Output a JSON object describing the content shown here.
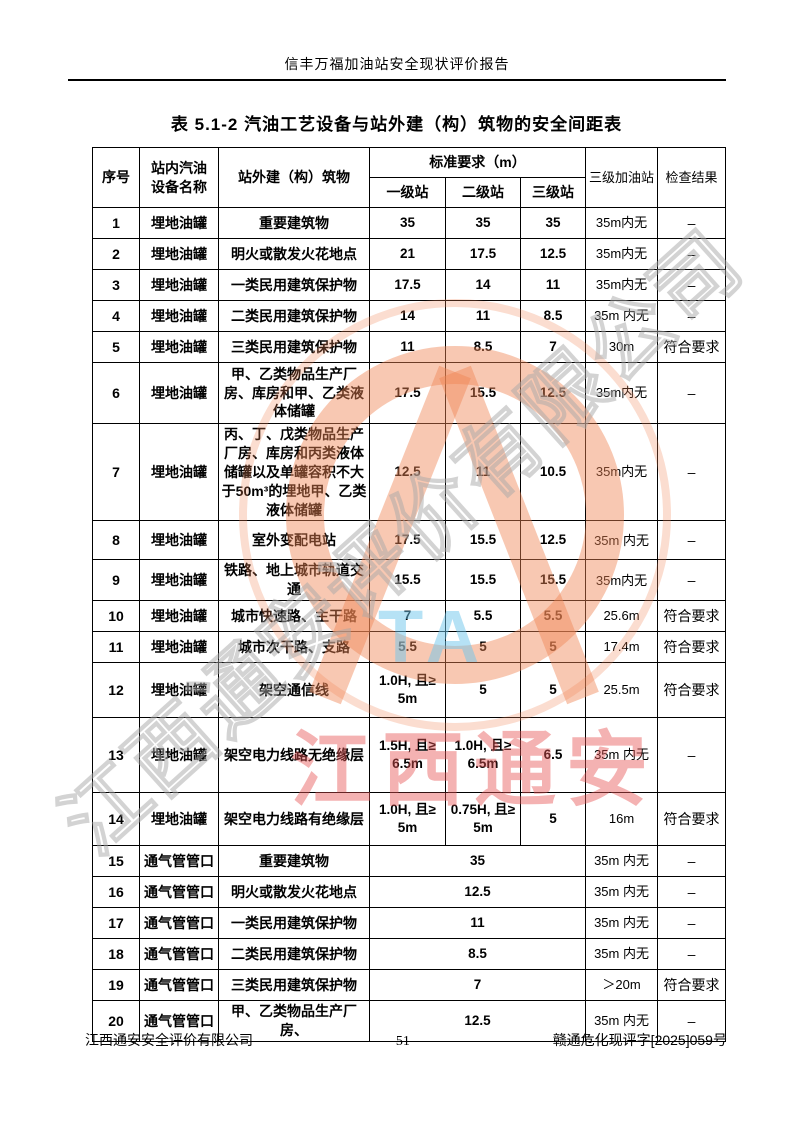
{
  "page": {
    "header": "信丰万福加油站安全现状评价报告",
    "title": "表 5.1-2  汽油工艺设备与站外建（构）筑物的安全间距表",
    "footer_left": "江西通安安全评价有限公司",
    "footer_page": "51",
    "footer_right": "赣通危化现评字[2025]059号"
  },
  "watermark": {
    "red_text": "江西通安",
    "diagonal_text": "江西通安评价有限公司",
    "logo_letters": "TA",
    "ring_color": "#f08455",
    "red_color": "#e65555",
    "gray_color": "#a8a8a8",
    "blue_color": "#6ec6ec"
  },
  "table": {
    "headers": {
      "col_index": "序号",
      "col_equipment": "站内汽油\n设备名称",
      "col_structure": "站外建（构）筑物",
      "col_standard": "标准要求（m）",
      "col_grade1": "一级站",
      "col_grade2": "二级站",
      "col_grade3": "三级站",
      "col_station3": "三级加油站",
      "col_result": "检查结果"
    },
    "rows": [
      {
        "no": "1",
        "equipment": "埋地油罐",
        "structure": "重要建筑物",
        "v1": "35",
        "v2": "35",
        "v3": "35",
        "station3": "35m内无",
        "result": "–"
      },
      {
        "no": "2",
        "equipment": "埋地油罐",
        "structure": "明火或散发火花地点",
        "v1": "21",
        "v2": "17.5",
        "v3": "12.5",
        "station3": "35m内无",
        "result": "–"
      },
      {
        "no": "3",
        "equipment": "埋地油罐",
        "structure": "一类民用建筑保护物",
        "v1": "17.5",
        "v2": "14",
        "v3": "11",
        "station3": "35m内无",
        "result": "–"
      },
      {
        "no": "4",
        "equipment": "埋地油罐",
        "structure": "二类民用建筑保护物",
        "v1": "14",
        "v2": "11",
        "v3": "8.5",
        "station3": "35m 内无",
        "result": "–"
      },
      {
        "no": "5",
        "equipment": "埋地油罐",
        "structure": "三类民用建筑保护物",
        "v1": "11",
        "v2": "8.5",
        "v3": "7",
        "station3": "30m",
        "result": "符合要求"
      },
      {
        "no": "6",
        "equipment": "埋地油罐",
        "structure": "甲、乙类物品生产厂房、库房和甲、乙类液体储罐",
        "v1": "17.5",
        "v2": "15.5",
        "v3": "12.5",
        "station3": "35m内无",
        "result": "–"
      },
      {
        "no": "7",
        "equipment": "埋地油罐",
        "structure": "丙、丁、戊类物品生产厂房、库房和丙类液体储罐以及单罐容积不大于50m³的埋地甲、乙类液体储罐",
        "v1": "12.5",
        "v2": "11",
        "v3": "10.5",
        "station3": "35m内无",
        "result": "–"
      },
      {
        "no": "8",
        "equipment": "埋地油罐",
        "structure": "室外变配电站",
        "v1": "17.5",
        "v2": "15.5",
        "v3": "12.5",
        "station3": "35m 内无",
        "result": "–"
      },
      {
        "no": "9",
        "equipment": "埋地油罐",
        "structure": "铁路、地上城市轨道交通",
        "v1": "15.5",
        "v2": "15.5",
        "v3": "15.5",
        "station3": "35m内无",
        "result": "–"
      },
      {
        "no": "10",
        "equipment": "埋地油罐",
        "structure": "城市快速路、主干路",
        "v1": "7",
        "v2": "5.5",
        "v3": "5.5",
        "station3": "25.6m",
        "result": "符合要求"
      },
      {
        "no": "11",
        "equipment": "埋地油罐",
        "structure": "城市次干路、支路",
        "v1": "5.5",
        "v2": "5",
        "v3": "5",
        "station3": "17.4m",
        "result": "符合要求"
      },
      {
        "no": "12",
        "equipment": "埋地油罐",
        "structure": "架空通信线",
        "v1": "1.0H, 且≥\n5m",
        "v2": "5",
        "v3": "5",
        "station3": "25.5m",
        "result": "符合要求"
      },
      {
        "no": "13",
        "equipment": "埋地油罐",
        "structure": "架空电力线路无绝缘层",
        "v1": "1.5H, 且≥\n6.5m",
        "v2": "1.0H, 且≥\n6.5m",
        "v3": "6.5",
        "station3": "35m 内无",
        "result": "–"
      },
      {
        "no": "14",
        "equipment": "埋地油罐",
        "structure": "架空电力线路有绝缘层",
        "v1": "1.0H, 且≥\n5m",
        "v2": "0.75H, 且≥\n5m",
        "v3": "5",
        "station3": "16m",
        "result": "符合要求"
      },
      {
        "no": "15",
        "equipment": "通气管管口",
        "structure": "重要建筑物",
        "merged": "35",
        "station3": "35m 内无",
        "result": "–"
      },
      {
        "no": "16",
        "equipment": "通气管管口",
        "structure": "明火或散发火花地点",
        "merged": "12.5",
        "station3": "35m 内无",
        "result": "–"
      },
      {
        "no": "17",
        "equipment": "通气管管口",
        "structure": "一类民用建筑保护物",
        "merged": "11",
        "station3": "35m 内无",
        "result": "–"
      },
      {
        "no": "18",
        "equipment": "通气管管口",
        "structure": "二类民用建筑保护物",
        "merged": "8.5",
        "station3": "35m 内无",
        "result": "–"
      },
      {
        "no": "19",
        "equipment": "通气管管口",
        "structure": "三类民用建筑保护物",
        "merged": "7",
        "station3": "＞20m",
        "result": "符合要求"
      },
      {
        "no": "20",
        "equipment": "通气管管口",
        "structure": "甲、乙类物品生产厂房、",
        "merged": "12.5",
        "station3": "35m 内无",
        "result": "–"
      }
    ]
  }
}
